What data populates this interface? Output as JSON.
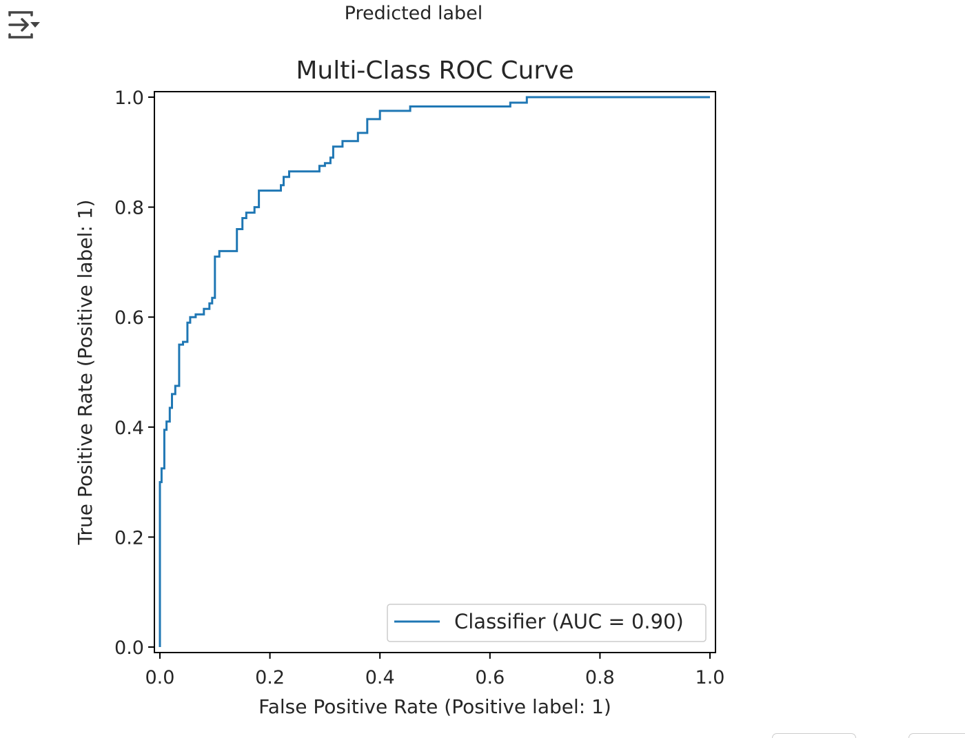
{
  "output": {
    "toggle_icon": "output-collapse-icon",
    "previous_figure_caption": "Predicted label"
  },
  "chart_data": {
    "type": "line",
    "title": "Multi-Class ROC Curve",
    "xlabel": "False Positive Rate (Positive label: 1)",
    "ylabel": "True Positive Rate (Positive label: 1)",
    "xlim": [
      -0.01,
      1.01
    ],
    "ylim": [
      -0.01,
      1.01
    ],
    "x_ticks": [
      "0.0",
      "0.2",
      "0.4",
      "0.6",
      "0.8",
      "1.0"
    ],
    "y_ticks": [
      "0.0",
      "0.2",
      "0.4",
      "0.6",
      "0.8",
      "1.0"
    ],
    "grid": false,
    "legend_position": "lower right",
    "series": [
      {
        "name": "Classifier (AUC = 0.90)",
        "color": "#1f77b4",
        "points": [
          [
            0.0,
            0.0
          ],
          [
            0.0,
            0.3
          ],
          [
            0.003,
            0.3
          ],
          [
            0.003,
            0.325
          ],
          [
            0.008,
            0.325
          ],
          [
            0.008,
            0.395
          ],
          [
            0.012,
            0.395
          ],
          [
            0.012,
            0.41
          ],
          [
            0.018,
            0.41
          ],
          [
            0.018,
            0.435
          ],
          [
            0.022,
            0.435
          ],
          [
            0.022,
            0.46
          ],
          [
            0.028,
            0.46
          ],
          [
            0.028,
            0.475
          ],
          [
            0.035,
            0.475
          ],
          [
            0.035,
            0.55
          ],
          [
            0.042,
            0.55
          ],
          [
            0.042,
            0.555
          ],
          [
            0.05,
            0.555
          ],
          [
            0.05,
            0.59
          ],
          [
            0.055,
            0.59
          ],
          [
            0.055,
            0.6
          ],
          [
            0.065,
            0.6
          ],
          [
            0.065,
            0.605
          ],
          [
            0.08,
            0.605
          ],
          [
            0.08,
            0.615
          ],
          [
            0.09,
            0.615
          ],
          [
            0.09,
            0.625
          ],
          [
            0.095,
            0.625
          ],
          [
            0.095,
            0.635
          ],
          [
            0.1,
            0.635
          ],
          [
            0.1,
            0.71
          ],
          [
            0.108,
            0.71
          ],
          [
            0.108,
            0.72
          ],
          [
            0.14,
            0.72
          ],
          [
            0.14,
            0.76
          ],
          [
            0.15,
            0.76
          ],
          [
            0.15,
            0.78
          ],
          [
            0.157,
            0.78
          ],
          [
            0.157,
            0.79
          ],
          [
            0.172,
            0.79
          ],
          [
            0.172,
            0.8
          ],
          [
            0.18,
            0.8
          ],
          [
            0.18,
            0.83
          ],
          [
            0.22,
            0.83
          ],
          [
            0.22,
            0.84
          ],
          [
            0.225,
            0.84
          ],
          [
            0.225,
            0.855
          ],
          [
            0.235,
            0.855
          ],
          [
            0.235,
            0.865
          ],
          [
            0.29,
            0.865
          ],
          [
            0.29,
            0.875
          ],
          [
            0.3,
            0.875
          ],
          [
            0.3,
            0.88
          ],
          [
            0.31,
            0.88
          ],
          [
            0.31,
            0.89
          ],
          [
            0.315,
            0.89
          ],
          [
            0.315,
            0.91
          ],
          [
            0.332,
            0.91
          ],
          [
            0.332,
            0.92
          ],
          [
            0.36,
            0.92
          ],
          [
            0.36,
            0.935
          ],
          [
            0.377,
            0.935
          ],
          [
            0.377,
            0.96
          ],
          [
            0.4,
            0.96
          ],
          [
            0.4,
            0.975
          ],
          [
            0.455,
            0.975
          ],
          [
            0.455,
            0.983
          ],
          [
            0.637,
            0.983
          ],
          [
            0.637,
            0.99
          ],
          [
            0.667,
            0.99
          ],
          [
            0.667,
            1.0
          ],
          [
            1.0,
            1.0
          ]
        ]
      }
    ]
  }
}
